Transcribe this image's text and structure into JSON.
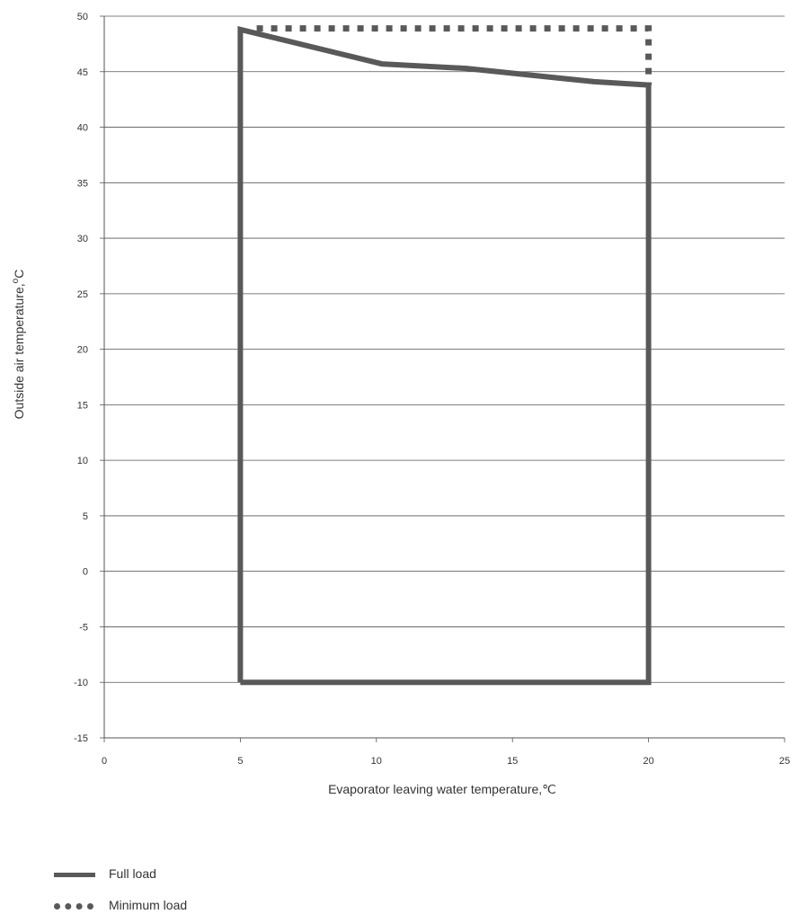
{
  "chart_data": {
    "type": "line",
    "xlabel": "Evaporator leaving water temperature,℃",
    "ylabel": "Outside air temperature,",
    "ylabel_sup": "o",
    "ylabel_suffix": "C",
    "xlim": [
      0,
      25
    ],
    "ylim": [
      -15,
      50
    ],
    "x_ticks": [
      0,
      5,
      10,
      15,
      20,
      25
    ],
    "y_ticks": [
      50,
      45,
      40,
      35,
      30,
      25,
      20,
      15,
      10,
      5,
      0,
      -5,
      -10,
      -15
    ],
    "grid": "horizontal",
    "legend_position": "bottom-left",
    "color": "#595959",
    "series": [
      {
        "name": "Full load",
        "style": "solid",
        "x": [
          5,
          5,
          10.2,
          13.3,
          18,
          20,
          20,
          5
        ],
        "y": [
          -10,
          48.8,
          45.7,
          45.3,
          44.1,
          43.8,
          -10,
          -10
        ]
      },
      {
        "name": "Minimum load",
        "style": "dotted",
        "x": [
          5.6,
          20,
          20
        ],
        "y": [
          48.9,
          48.9,
          43.8
        ]
      }
    ]
  }
}
